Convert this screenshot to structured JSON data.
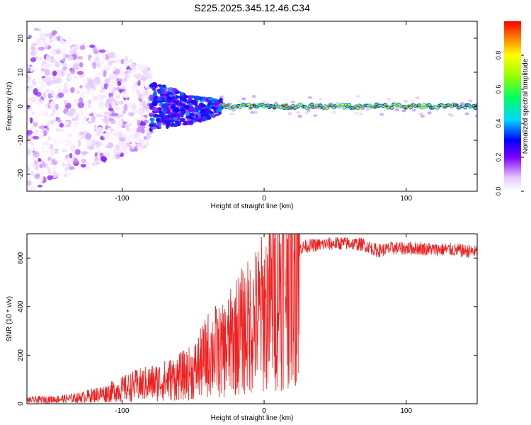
{
  "title": "S225.2025.345.12.46.C34",
  "chart_data": [
    {
      "type": "heatmap",
      "xlabel": "Height of straight line (km)",
      "ylabel": "Frequency (Hz)",
      "xlim": [
        -167,
        150
      ],
      "ylim": [
        -25,
        25
      ],
      "xticks": [
        -100,
        0,
        100
      ],
      "yticks": [
        -20,
        -10,
        0,
        10,
        20
      ],
      "colorbar": {
        "label": "Normalized spectral amplitude",
        "range": [
          0,
          1
        ],
        "ticks": [
          "0.0",
          "0.2",
          "0.4",
          "0.6",
          "0.8"
        ]
      },
      "description_segments": [
        {
          "x_range": [
            -167,
            -80
          ],
          "kind": "scattered noise",
          "freq_spread": 25,
          "amplitude": [
            0.0,
            0.15
          ]
        },
        {
          "x_range": [
            -80,
            -30
          ],
          "kind": "converging signal",
          "freq_spread": 5,
          "amplitude": [
            0.15,
            0.35
          ]
        },
        {
          "x_range": [
            -30,
            150
          ],
          "kind": "narrow carrier",
          "center_freq": 0,
          "amplitude": [
            0.5,
            1.0
          ]
        }
      ]
    },
    {
      "type": "line",
      "xlabel": "Height of straight line (km)",
      "ylabel": "SNR (10 * v/v)",
      "xlim": [
        -167,
        150
      ],
      "ylim": [
        0,
        700
      ],
      "xticks": [
        -100,
        0,
        100
      ],
      "yticks": [
        0,
        200,
        400,
        600
      ],
      "color": "#ee2020",
      "series": [
        {
          "name": "SNR",
          "x": [
            -167,
            -150,
            -140,
            -130,
            -120,
            -110,
            -100,
            -90,
            -80,
            -70,
            -60,
            -50,
            -45,
            -40,
            -35,
            -30,
            -25,
            -20,
            -15,
            -10,
            -5,
            0,
            5,
            10,
            15,
            20,
            25,
            30,
            40,
            50,
            60,
            70,
            80,
            90,
            100,
            110,
            120,
            130,
            140,
            150
          ],
          "y": [
            15,
            18,
            20,
            25,
            35,
            45,
            60,
            75,
            85,
            95,
            110,
            130,
            160,
            200,
            220,
            210,
            240,
            280,
            300,
            320,
            350,
            380,
            420,
            480,
            560,
            620,
            640,
            650,
            655,
            660,
            660,
            655,
            630,
            640,
            640,
            640,
            635,
            635,
            630,
            625
          ]
        }
      ]
    }
  ]
}
